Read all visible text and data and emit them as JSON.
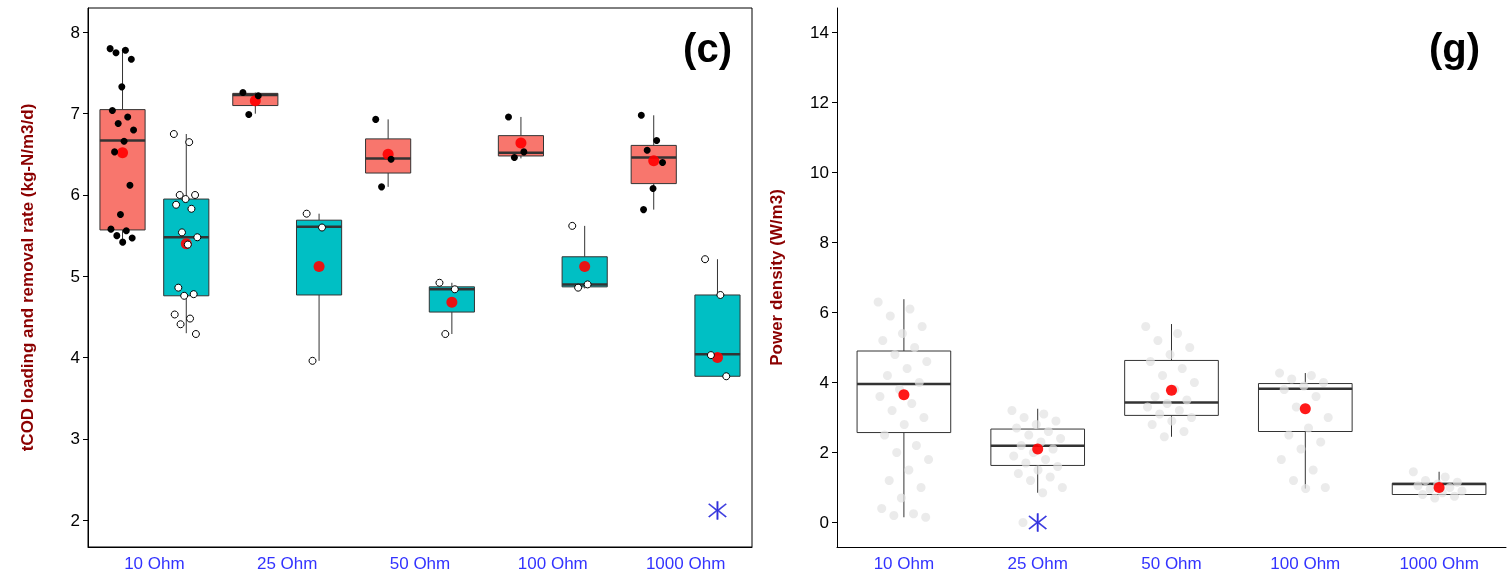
{
  "chart_data": [
    {
      "type": "box",
      "ylabel": "tCOD loading and removal rate (kg-N/m3/d)",
      "annotations": [
        "(c)"
      ],
      "categories": [
        "10 Ohm",
        "25 Ohm",
        "50 Ohm",
        "100 Ohm",
        "1000 Ohm"
      ],
      "ylim": [
        1.67,
        8.3
      ],
      "yticks": [
        2,
        3,
        4,
        5,
        6,
        7,
        8
      ],
      "grid": false,
      "series": [
        {
          "color": "#f8766d",
          "boxes": [
            {
              "low": 5.42,
              "q1": 5.57,
              "median": 6.67,
              "q3": 7.05,
              "high": 7.8,
              "mean": 6.52
            },
            {
              "low": 7.0,
              "q1": 7.1,
              "median": 7.23,
              "q3": 7.25,
              "high": 7.26,
              "mean": 7.16
            },
            {
              "low": 6.1,
              "q1": 6.27,
              "median": 6.45,
              "q3": 6.69,
              "high": 6.93,
              "mean": 6.5
            },
            {
              "low": 6.45,
              "q1": 6.48,
              "median": 6.52,
              "q3": 6.73,
              "high": 6.96,
              "mean": 6.64
            },
            {
              "low": 5.82,
              "q1": 6.14,
              "median": 6.46,
              "q3": 6.61,
              "high": 6.98,
              "mean": 6.42
            }
          ]
        },
        {
          "color": "#00bfc4",
          "boxes": [
            {
              "low": 4.3,
              "q1": 4.76,
              "median": 5.48,
              "q3": 5.95,
              "high": 6.75,
              "mean": 5.4
            },
            {
              "low": 3.96,
              "q1": 4.77,
              "median": 5.61,
              "q3": 5.69,
              "high": 5.77,
              "mean": 5.12
            },
            {
              "low": 4.29,
              "q1": 4.56,
              "median": 4.84,
              "q3": 4.87,
              "high": 4.92,
              "mean": 4.68
            },
            {
              "low": 4.85,
              "q1": 4.87,
              "median": 4.9,
              "q3": 5.24,
              "high": 5.62,
              "mean": 5.12
            },
            {
              "low": 3.77,
              "q1": 3.77,
              "median": 4.04,
              "q3": 4.77,
              "high": 5.21,
              "mean": 4.0
            }
          ]
        },
        {
          "type": "scatter",
          "color": "#000000",
          "marker": "circle",
          "x": [
            "10 Ohm",
            "10 Ohm",
            "10 Ohm",
            "10 Ohm",
            "10 Ohm",
            "10 Ohm",
            "10 Ohm",
            "10 Ohm",
            "10 Ohm",
            "10 Ohm",
            "10 Ohm",
            "10 Ohm",
            "10 Ohm",
            "10 Ohm",
            "10 Ohm",
            "10 Ohm",
            "10 Ohm",
            "10 Ohm",
            "25 Ohm",
            "25 Ohm",
            "25 Ohm",
            "50 Ohm",
            "50 Ohm",
            "50 Ohm",
            "100 Ohm",
            "100 Ohm",
            "100 Ohm",
            "1000 Ohm",
            "1000 Ohm",
            "1000 Ohm",
            "1000 Ohm",
            "1000 Ohm",
            "1000 Ohm"
          ],
          "values": [
            7.8,
            7.78,
            7.75,
            7.67,
            7.33,
            7.04,
            6.96,
            6.88,
            6.8,
            6.66,
            6.53,
            6.12,
            5.76,
            5.58,
            5.56,
            5.5,
            5.47,
            5.42,
            7.26,
            7.22,
            6.99,
            6.93,
            6.44,
            6.1,
            6.96,
            6.53,
            6.46,
            6.98,
            6.67,
            6.55,
            6.4,
            6.08,
            5.82
          ]
        },
        {
          "type": "scatter",
          "color": "#ffffff",
          "marker": "circle",
          "x": [
            "10 Ohm",
            "10 Ohm",
            "10 Ohm",
            "10 Ohm",
            "10 Ohm",
            "10 Ohm",
            "10 Ohm",
            "10 Ohm",
            "10 Ohm",
            "10 Ohm",
            "10 Ohm",
            "10 Ohm",
            "10 Ohm",
            "10 Ohm",
            "10 Ohm",
            "10 Ohm",
            "10 Ohm",
            "25 Ohm",
            "25 Ohm",
            "25 Ohm",
            "50 Ohm",
            "50 Ohm",
            "50 Ohm",
            "100 Ohm",
            "100 Ohm",
            "100 Ohm",
            "1000 Ohm",
            "1000 Ohm",
            "1000 Ohm",
            "1000 Ohm"
          ],
          "values": [
            6.75,
            6.65,
            6.0,
            6.0,
            5.95,
            5.88,
            5.83,
            5.54,
            5.48,
            5.39,
            4.86,
            4.78,
            4.76,
            4.53,
            4.48,
            4.41,
            4.29,
            5.77,
            5.6,
            3.96,
            4.92,
            4.84,
            4.29,
            5.62,
            4.9,
            4.86,
            5.21,
            4.77,
            4.03,
            3.77
          ]
        },
        {
          "type": "scatter",
          "color": "#3333dd",
          "marker": "star",
          "x": [
            "1000 Ohm"
          ],
          "values": [
            2.12
          ]
        }
      ]
    },
    {
      "type": "box",
      "ylabel": "Power density (W/m3)",
      "annotations": [
        "(g)"
      ],
      "categories": [
        "10 Ohm",
        "25 Ohm",
        "50 Ohm",
        "100 Ohm",
        "1000 Ohm"
      ],
      "ylim": [
        -0.7,
        14.7
      ],
      "yticks": [
        0,
        2,
        4,
        6,
        8,
        10,
        12,
        14
      ],
      "grid": false,
      "series": [
        {
          "color": "#ffffff",
          "boxes": [
            {
              "low": 0.15,
              "q1": 2.57,
              "median": 3.96,
              "q3": 4.9,
              "high": 6.38,
              "mean": 3.65
            },
            {
              "low": 0.85,
              "q1": 1.63,
              "median": 2.19,
              "q3": 2.67,
              "high": 3.25,
              "mean": 2.1
            },
            {
              "low": 2.45,
              "q1": 3.06,
              "median": 3.43,
              "q3": 4.63,
              "high": 5.67,
              "mean": 3.78
            },
            {
              "low": 0.97,
              "q1": 2.6,
              "median": 3.82,
              "q3": 3.97,
              "high": 4.27,
              "mean": 3.25
            },
            {
              "low": 0.8,
              "q1": 0.8,
              "median": 1.1,
              "q3": 1.12,
              "high": 1.45,
              "mean": 1.0
            }
          ]
        },
        {
          "type": "scatter",
          "color": "#e3e3e3",
          "marker": "circle",
          "x": [
            "10 Ohm",
            "10 Ohm",
            "10 Ohm",
            "10 Ohm",
            "10 Ohm",
            "10 Ohm",
            "10 Ohm",
            "10 Ohm",
            "10 Ohm",
            "10 Ohm",
            "10 Ohm",
            "10 Ohm",
            "10 Ohm",
            "10 Ohm",
            "10 Ohm",
            "10 Ohm",
            "10 Ohm",
            "10 Ohm",
            "10 Ohm",
            "10 Ohm",
            "10 Ohm",
            "10 Ohm",
            "10 Ohm",
            "10 Ohm",
            "10 Ohm",
            "10 Ohm",
            "10 Ohm",
            "10 Ohm",
            "10 Ohm",
            "10 Ohm",
            "25 Ohm",
            "25 Ohm",
            "25 Ohm",
            "25 Ohm",
            "25 Ohm",
            "25 Ohm",
            "25 Ohm",
            "25 Ohm",
            "25 Ohm",
            "25 Ohm",
            "25 Ohm",
            "25 Ohm",
            "25 Ohm",
            "25 Ohm",
            "25 Ohm",
            "25 Ohm",
            "25 Ohm",
            "25 Ohm",
            "25 Ohm",
            "25 Ohm",
            "25 Ohm",
            "25 Ohm",
            "25 Ohm",
            "25 Ohm",
            "50 Ohm",
            "50 Ohm",
            "50 Ohm",
            "50 Ohm",
            "50 Ohm",
            "50 Ohm",
            "50 Ohm",
            "50 Ohm",
            "50 Ohm",
            "50 Ohm",
            "50 Ohm",
            "50 Ohm",
            "50 Ohm",
            "50 Ohm",
            "50 Ohm",
            "50 Ohm",
            "50 Ohm",
            "50 Ohm",
            "50 Ohm",
            "50 Ohm",
            "50 Ohm",
            "100 Ohm",
            "100 Ohm",
            "100 Ohm",
            "100 Ohm",
            "100 Ohm",
            "100 Ohm",
            "100 Ohm",
            "100 Ohm",
            "100 Ohm",
            "100 Ohm",
            "100 Ohm",
            "100 Ohm",
            "100 Ohm",
            "100 Ohm",
            "100 Ohm",
            "100 Ohm",
            "100 Ohm",
            "100 Ohm",
            "1000 Ohm",
            "1000 Ohm",
            "1000 Ohm",
            "1000 Ohm",
            "1000 Ohm",
            "1000 Ohm",
            "1000 Ohm",
            "1000 Ohm",
            "1000 Ohm",
            "1000 Ohm",
            "1000 Ohm",
            "1000 Ohm",
            "1000 Ohm"
          ],
          "values": [
            6.3,
            6.1,
            5.9,
            5.6,
            5.4,
            5.2,
            5.0,
            4.8,
            4.6,
            4.4,
            4.2,
            4.0,
            3.8,
            3.6,
            3.4,
            3.2,
            3.0,
            2.8,
            2.5,
            2.2,
            2.0,
            1.8,
            1.5,
            1.2,
            1.0,
            0.7,
            0.4,
            0.25,
            0.2,
            0.15,
            3.2,
            3.1,
            3.0,
            2.9,
            2.8,
            2.7,
            2.6,
            2.5,
            2.4,
            2.3,
            2.2,
            2.1,
            2.0,
            1.9,
            1.8,
            1.7,
            1.6,
            1.5,
            1.4,
            1.3,
            1.2,
            1.0,
            0.85,
            0,
            5.6,
            5.4,
            5.2,
            5.0,
            4.8,
            4.6,
            4.4,
            4.2,
            4.0,
            3.8,
            3.6,
            3.5,
            3.4,
            3.3,
            3.2,
            3.1,
            3.0,
            2.9,
            2.8,
            2.6,
            2.45,
            4.27,
            4.2,
            4.1,
            4.0,
            3.9,
            3.8,
            3.6,
            3.3,
            3.0,
            2.7,
            2.5,
            2.3,
            2.1,
            1.8,
            1.5,
            1.2,
            1.0,
            0.97,
            1.45,
            1.3,
            1.2,
            1.15,
            1.1,
            1.05,
            1.0,
            0.95,
            0.9,
            0.85,
            0.8,
            0.75,
            0.7
          ]
        },
        {
          "type": "scatter",
          "color": "#3333dd",
          "marker": "star",
          "x": [
            "25 Ohm"
          ],
          "values": [
            0
          ]
        }
      ]
    }
  ]
}
